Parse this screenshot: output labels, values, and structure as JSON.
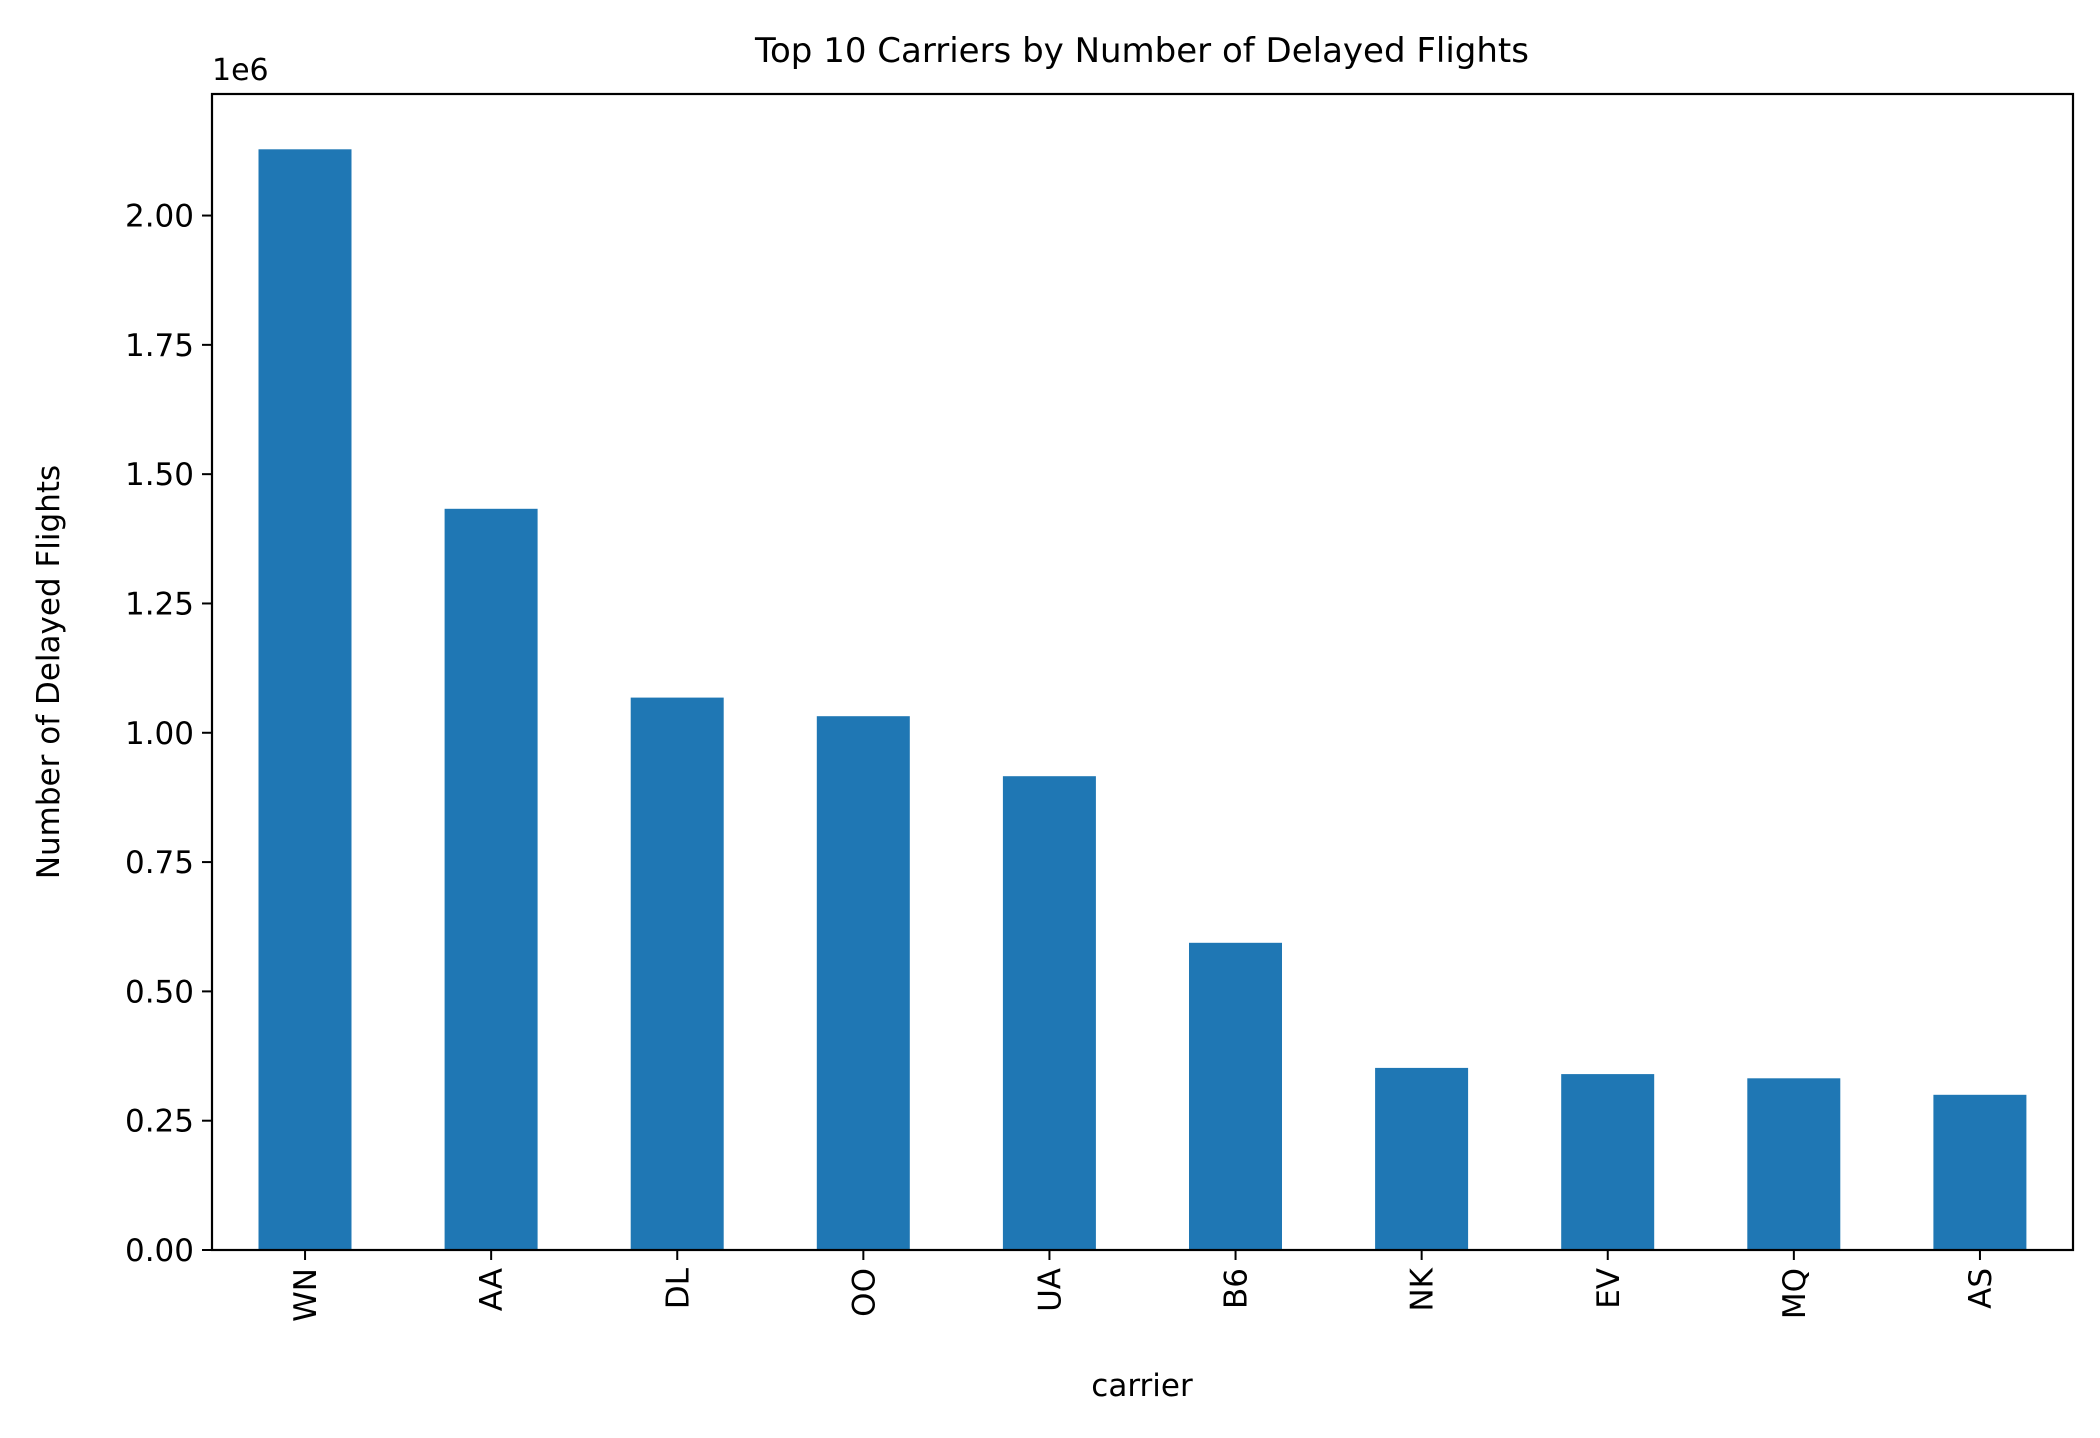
{
  "chart_data": {
    "type": "bar",
    "title": "Top 10 Carriers by Number of Delayed Flights",
    "xlabel": "carrier",
    "ylabel": "Number of Delayed Flights",
    "y_offset_label": "1e6",
    "categories": [
      "WN",
      "AA",
      "DL",
      "OO",
      "UA",
      "B6",
      "NK",
      "EV",
      "MQ",
      "AS"
    ],
    "values": [
      2128000,
      1433000,
      1068000,
      1032000,
      916000,
      594000,
      352000,
      340000,
      332000,
      300000
    ],
    "ylim": [
      0,
      2235000
    ],
    "yticks": [
      0,
      250000,
      500000,
      750000,
      1000000,
      1250000,
      1500000,
      1750000,
      2000000
    ],
    "ytick_labels": [
      "0.00",
      "0.25",
      "0.50",
      "0.75",
      "1.00",
      "1.25",
      "1.50",
      "1.75",
      "2.00"
    ],
    "grid": false,
    "bar_color": "#1f77b4"
  }
}
